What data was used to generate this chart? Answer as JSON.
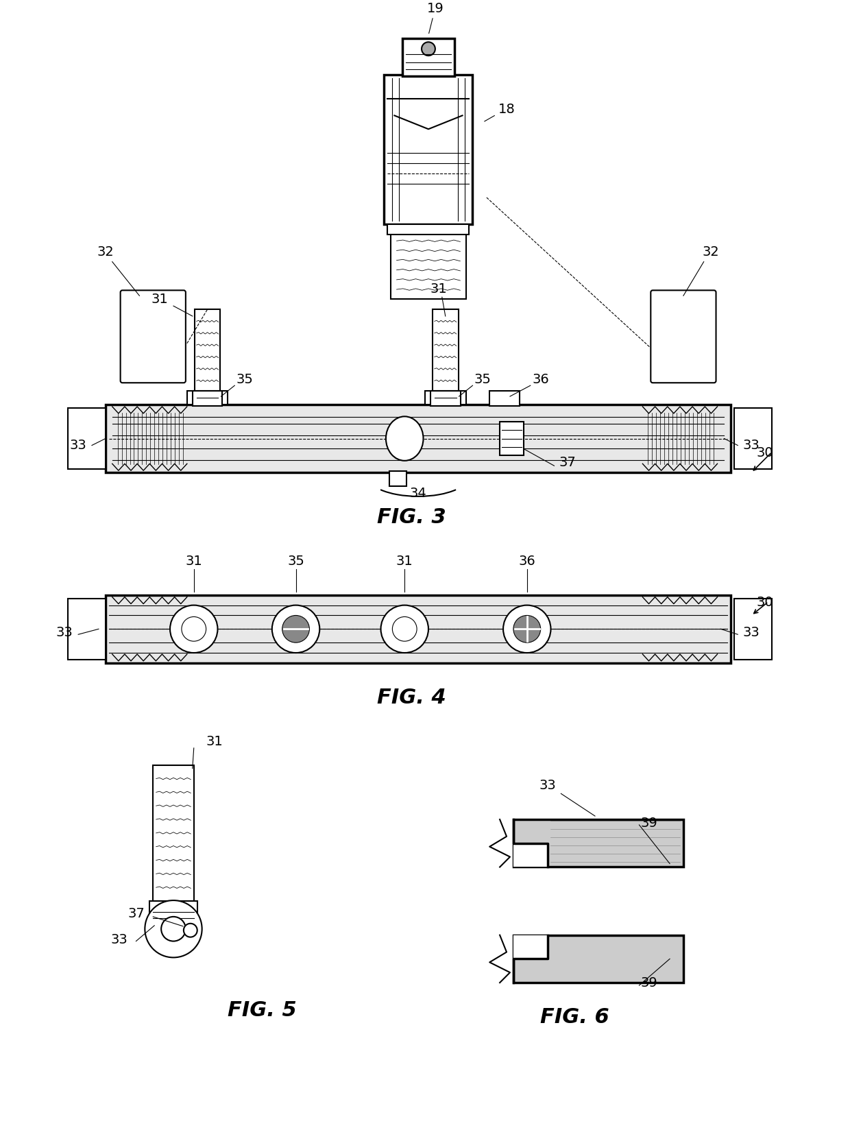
{
  "bg_color": "#ffffff",
  "line_color": "#000000",
  "hatch_color": "#000000",
  "fig_width": 12.4,
  "fig_height": 16.65,
  "labels": {
    "fig3": "FIG. 3",
    "fig4": "FIG. 4",
    "fig5": "FIG. 5",
    "fig6": "FIG. 6"
  },
  "ref_numbers": [
    "18",
    "19",
    "30",
    "31",
    "31",
    "32",
    "32",
    "33",
    "33",
    "34",
    "35",
    "35",
    "36",
    "37"
  ],
  "font_size_label": 22,
  "font_size_ref": 14
}
